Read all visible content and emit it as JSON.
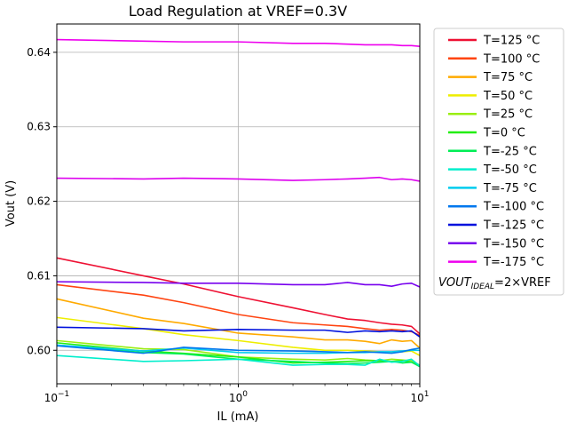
{
  "chart_data": {
    "type": "line",
    "title": "Load Regulation at VREF=0.3V",
    "xlabel": "IL (mA)",
    "ylabel": "Vout (V)",
    "xscale": "log",
    "xlim": [
      0.1,
      10
    ],
    "ylim": [
      0.5955,
      0.6438
    ],
    "grid": true,
    "legend_position": "outside-right",
    "x_ticks": [
      {
        "value": 0.1,
        "base": "10",
        "exp": "−1"
      },
      {
        "value": 1,
        "base": "10",
        "exp": "0"
      },
      {
        "value": 10,
        "base": "10",
        "exp": "1"
      }
    ],
    "y_ticks": [
      {
        "value": 0.6,
        "label": "0.60"
      },
      {
        "value": 0.61,
        "label": "0.61"
      },
      {
        "value": 0.62,
        "label": "0.62"
      },
      {
        "value": 0.63,
        "label": "0.63"
      },
      {
        "value": 0.64,
        "label": "0.64"
      }
    ],
    "legend_note": {
      "main": "VOUT",
      "sub": "IDEAL",
      "rest": "=2×VREF"
    },
    "x": [
      0.1,
      0.3,
      0.5,
      1,
      2,
      3,
      4,
      5,
      6,
      7,
      8,
      9,
      10
    ],
    "series": [
      {
        "name": "T=125 °C",
        "color": "#ee1133",
        "values": [
          0.6124,
          0.61,
          0.6089,
          0.6072,
          0.6057,
          0.6048,
          0.6042,
          0.604,
          0.6037,
          0.6035,
          0.6034,
          0.6032,
          0.6022
        ]
      },
      {
        "name": "T=100 °C",
        "color": "#ff4411",
        "values": [
          0.6088,
          0.6074,
          0.6064,
          0.6048,
          0.6037,
          0.6034,
          0.6032,
          0.6029,
          0.6027,
          0.6028,
          0.6027,
          0.6025,
          0.602
        ]
      },
      {
        "name": "T=75 °C",
        "color": "#ffaa00",
        "values": [
          0.6069,
          0.6043,
          0.6036,
          0.6023,
          0.6018,
          0.6014,
          0.6014,
          0.6012,
          0.6009,
          0.6014,
          0.6012,
          0.6013,
          0.6003
        ]
      },
      {
        "name": "T=50 °C",
        "color": "#eeee00",
        "values": [
          0.6044,
          0.6029,
          0.6021,
          0.6013,
          0.6004,
          0.6,
          0.6,
          0.5999,
          0.5998,
          0.5997,
          0.5998,
          0.5999,
          0.5993
        ]
      },
      {
        "name": "T=25 °C",
        "color": "#99ee11",
        "values": [
          0.6013,
          0.6002,
          0.6001,
          0.5991,
          0.5988,
          0.5987,
          0.5989,
          0.5987,
          0.5986,
          0.5988,
          0.5987,
          0.5986,
          0.598
        ]
      },
      {
        "name": "T=0 °C",
        "color": "#22ee11",
        "values": [
          0.601,
          0.5999,
          0.5996,
          0.5991,
          0.5983,
          0.5984,
          0.5985,
          0.5986,
          0.5986,
          0.5985,
          0.5986,
          0.5984,
          0.5979
        ]
      },
      {
        "name": "T=-25 °C",
        "color": "#00ee55",
        "values": [
          0.6007,
          0.5997,
          0.5995,
          0.5988,
          0.5985,
          0.5983,
          0.5982,
          0.5983,
          0.5984,
          0.5985,
          0.5983,
          0.5984,
          0.5978
        ]
      },
      {
        "name": "T=-50 °C",
        "color": "#00eecc",
        "values": [
          0.5993,
          0.5985,
          0.5986,
          0.5988,
          0.598,
          0.5981,
          0.5981,
          0.598,
          0.5988,
          0.5984,
          0.5985,
          0.5988,
          0.5979
        ]
      },
      {
        "name": "T=-75 °C",
        "color": "#00ccee",
        "values": [
          0.6007,
          0.5999,
          0.6003,
          0.5997,
          0.5996,
          0.5996,
          0.5997,
          0.5997,
          0.5998,
          0.5998,
          0.5999,
          0.6,
          0.6
        ]
      },
      {
        "name": "T=-100 °C",
        "color": "#0077ee",
        "values": [
          0.6006,
          0.5996,
          0.6004,
          0.6,
          0.5999,
          0.5998,
          0.5997,
          0.5998,
          0.5997,
          0.5996,
          0.5998,
          0.6001,
          0.6003
        ]
      },
      {
        "name": "T=-125 °C",
        "color": "#0011dd",
        "values": [
          0.6031,
          0.6029,
          0.6026,
          0.6028,
          0.6027,
          0.6027,
          0.6024,
          0.6026,
          0.6025,
          0.6026,
          0.6025,
          0.6026,
          0.6018
        ]
      },
      {
        "name": "T=-150 °C",
        "color": "#7700ee",
        "values": [
          0.6092,
          0.6091,
          0.609,
          0.609,
          0.6088,
          0.6088,
          0.6091,
          0.6088,
          0.6088,
          0.6086,
          0.6089,
          0.609,
          0.6085
        ]
      },
      {
        "name": "T=-175 °C",
        "color": "#ee00ee",
        "values": [
          0.6417,
          0.6415,
          0.6414,
          0.6414,
          0.6412,
          0.6412,
          0.6411,
          0.641,
          0.641,
          0.641,
          0.6409,
          0.6409,
          0.6408
        ]
      }
    ],
    "series_extra": {
      "T=-175 °C_second": {
        "color": "#dd00ee",
        "values": [
          0.6231,
          0.623,
          0.6231,
          0.623,
          0.6228,
          0.6229,
          0.623,
          0.6231,
          0.6232,
          0.6229,
          0.623,
          0.6229,
          0.6227
        ]
      }
    }
  }
}
